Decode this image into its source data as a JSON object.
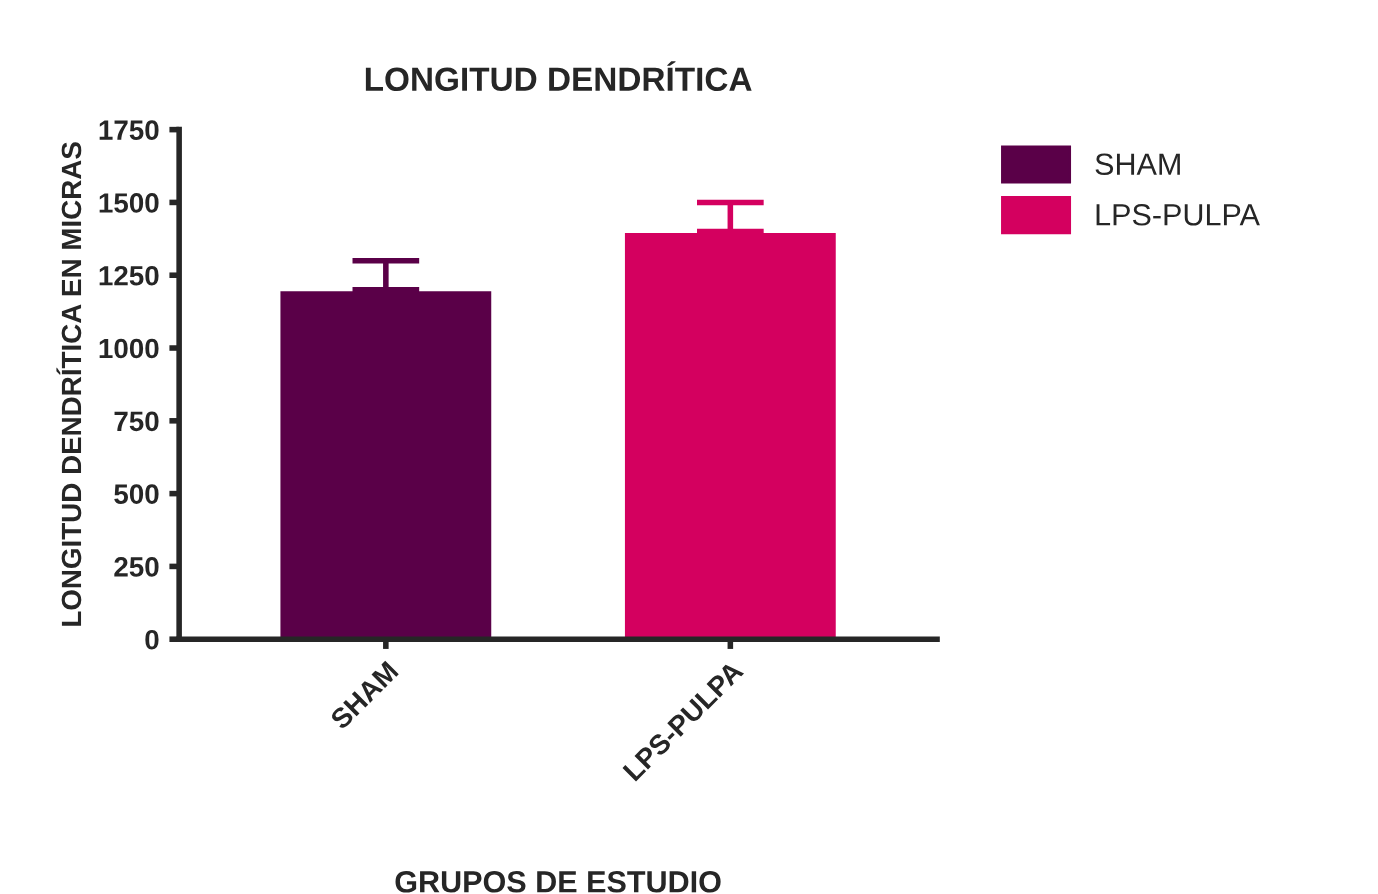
{
  "chart_data": {
    "type": "bar",
    "title": "LONGITUD DENDRÍTICA",
    "xlabel": "GRUPOS DE ESTUDIO",
    "ylabel": "LONGITUD DENDRÍTICA EN MICRAS",
    "categories": [
      "SHAM",
      "LPS-PULPA"
    ],
    "series": [
      {
        "name": "SHAM",
        "color": "#5a0048",
        "values": [
          1200,
          null
        ],
        "errors": [
          [
            1200,
            1300
          ],
          null
        ]
      },
      {
        "name": "LPS-PULPA",
        "color": "#d4005f",
        "values": [
          null,
          1400
        ],
        "errors": [
          null,
          [
            1400,
            1500
          ]
        ]
      }
    ],
    "ylim": [
      0,
      1750
    ],
    "yticks": [
      0,
      250,
      500,
      750,
      1000,
      1250,
      1500,
      1750
    ],
    "grid": false,
    "legend": "top right"
  }
}
